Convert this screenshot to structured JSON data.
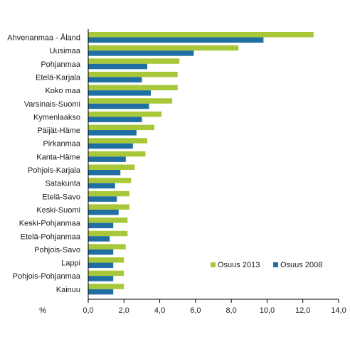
{
  "chart_data": {
    "type": "bar",
    "orientation": "horizontal",
    "categories": [
      "Ahvenanmaa - Åland",
      "Uusimaa",
      "Pohjanmaa",
      "Etelä-Karjala",
      "Koko maa",
      "Varsinais-Suomi",
      "Kymenlaakso",
      "Päijät-Häme",
      "Pirkanmaa",
      "Kanta-Häme",
      "Pohjois-Karjala",
      "Satakunta",
      "Etelä-Savo",
      "Keski-Suomi",
      "Keski-Pohjanmaa",
      "Etelä-Pohjanmaa",
      "Pohjois-Savo",
      "Lappi",
      "Pohjois-Pohjanmaa",
      "Kainuu"
    ],
    "series": [
      {
        "name": "Osuus 2013",
        "color": "#a8c83a",
        "values": [
          12.6,
          8.4,
          5.1,
          5.0,
          5.0,
          4.7,
          4.1,
          3.7,
          3.3,
          3.2,
          2.6,
          2.4,
          2.3,
          2.3,
          2.2,
          2.2,
          2.1,
          2.0,
          2.0,
          2.0
        ]
      },
      {
        "name": "Osuus 2008",
        "color": "#1f6fa3",
        "values": [
          9.8,
          5.9,
          3.3,
          3.0,
          3.5,
          3.4,
          3.0,
          2.7,
          2.5,
          2.1,
          1.8,
          1.5,
          1.6,
          1.7,
          1.4,
          1.2,
          1.4,
          1.4,
          1.4,
          1.4
        ]
      }
    ],
    "xlim": [
      0,
      14
    ],
    "x_ticks": [
      "0,0",
      "2,0",
      "4,0",
      "6,0",
      "8,0",
      "10,0",
      "12,0",
      "14,0"
    ],
    "unit_label": "%",
    "grid": false,
    "legend_position": "bottom-right"
  }
}
